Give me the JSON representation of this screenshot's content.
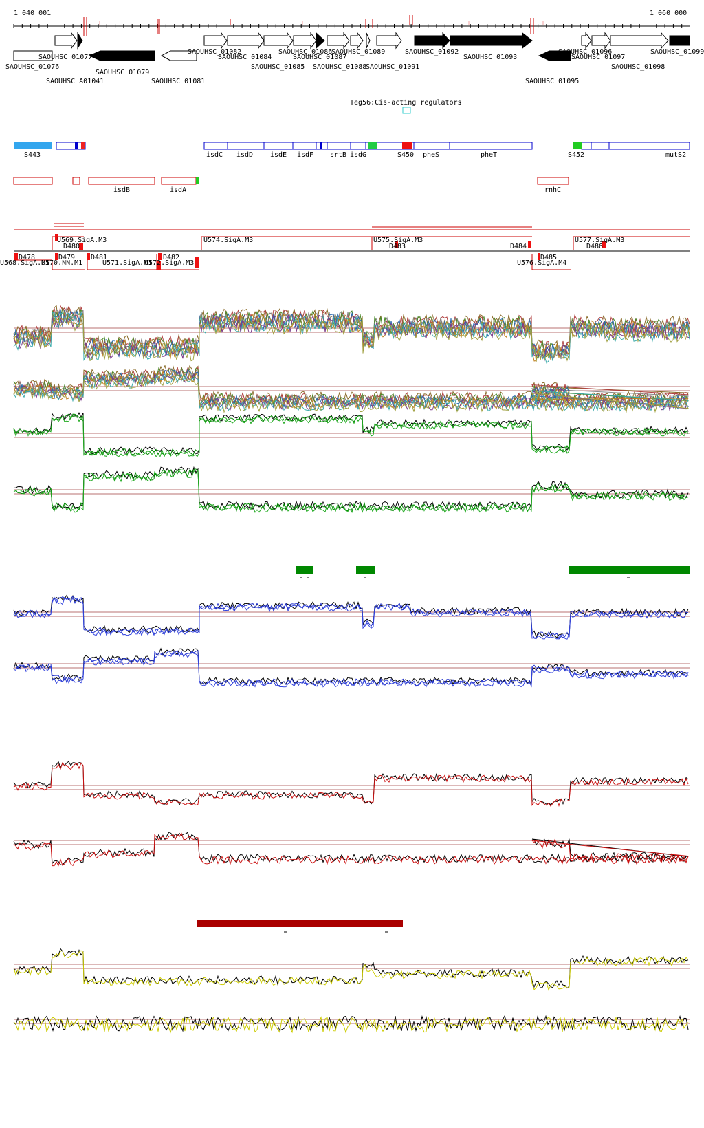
{
  "coordinates": {
    "start": "1 040 001",
    "end": "1 060 000"
  },
  "genes_row1": [
    "SAOUHSC_01077",
    "SAOUHSC_01082",
    "SAOUHSC_01084",
    "SAOUHSC_01086",
    "SAOUHSC_01087",
    "SAOUHSC_01089",
    "SAOUHSC_01092",
    "SAOUHSC_01093",
    "SAOUHSC_01096",
    "SAOUHSC_01097",
    "SAOUHSC_01099"
  ],
  "genes_row2": [
    "SAOUHSC_01076",
    "SAOUHSC_A01041",
    "SAOUHSC_01079",
    "SAOUHSC_01081",
    "SAOUHSC_01085",
    "SAOUHSC_01088",
    "SAOUHSC_01091",
    "SAOUHSC_01095",
    "SAOUHSC_01098"
  ],
  "regulator_label": "Teg56:Cis-acting regulators",
  "blue_track_labels": [
    "S443",
    "isdC",
    "isdD",
    "isdE",
    "isdF",
    "srtB",
    "isdG",
    "S450",
    "pheS",
    "pheT",
    "S452",
    "mutS2"
  ],
  "red_track_labels": [
    "isdB",
    "isdA",
    "rnhC"
  ],
  "segment_labels_top": [
    "U569.SigA.M3",
    "U574.SigA.M3",
    "U575.SigA.M3",
    "U577.SigA.M3"
  ],
  "segment_labels_mid": [
    "D480",
    "D483",
    "D484",
    "D486"
  ],
  "segment_labels_bottom": [
    "D478",
    "D479",
    "D481",
    "D482",
    "D485",
    "U568.SigA.M1",
    "U570.NN.M1",
    "U571.SigA.M1",
    "U572.SigA.M3",
    "U576.SigA.M4"
  ],
  "colors": {
    "gene_fill": "#000000",
    "track_blue": "#0000cc",
    "track_red": "#cc0000",
    "profile_green": "#008800",
    "profile_blue": "#2233cc",
    "profile_red": "#cc1111",
    "profile_yellow": "#cccc00",
    "highlight_green": "#008800",
    "highlight_darkred": "#aa0000",
    "marker_cyan": "#33cccc"
  }
}
